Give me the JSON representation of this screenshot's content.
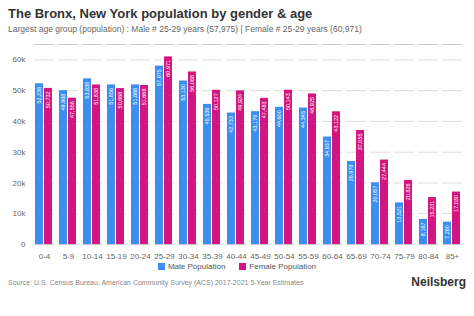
{
  "chart_data": {
    "type": "bar",
    "title": "The Bronx, New York population by gender & age",
    "subtitle": "Largest age group (population) : Male # 25-29 years (57,975) | Female # 25-29 years (60,971)",
    "source": "Source: U.S. Census Bureau, American Community Survey (ACS) 2017-2021 5-Year Estimates",
    "credit": "Neilsberg",
    "categories": [
      "0-4",
      "5-9",
      "10-14",
      "15-19",
      "20-24",
      "25-29",
      "30-34",
      "35-39",
      "40-44",
      "45-49",
      "50-54",
      "55-59",
      "60-64",
      "65-69",
      "70-74",
      "75-79",
      "80-84",
      "85+"
    ],
    "series": [
      {
        "name": "Male Population",
        "color": "#3d8ef0",
        "values": [
          52236,
          49988,
          53838,
          51856,
          51888,
          57975,
          53130,
          45536,
          42733,
          43179,
          44600,
          44345,
          34937,
          26978,
          20057,
          13521,
          8167,
          7260
        ],
        "value_labels": [
          "52,236",
          "49,988",
          "53,838",
          "51,856",
          "51,888",
          "57,975",
          "53,130",
          "45,536",
          "42,733",
          "43,179",
          "44,600",
          "44,345",
          "34,937",
          "26,978",
          "20,057",
          "13,521",
          "8,167",
          "7,260"
        ]
      },
      {
        "name": "Female Population",
        "color": "#d4147f",
        "values": [
          50732,
          47556,
          51838,
          50668,
          51668,
          60971,
          56068,
          50127,
          49924,
          47483,
          50143,
          48925,
          43122,
          37055,
          27444,
          20826,
          15231,
          17030
        ],
        "value_labels": [
          "50,732",
          "47,556",
          "51,838",
          "50,668",
          "51,668",
          "60,971",
          "56,068",
          "50,127",
          "49,924",
          "47,483",
          "50,143",
          "48,925",
          "43,122",
          "37,055",
          "27,444",
          "20,826",
          "15,231",
          "17,030"
        ]
      }
    ],
    "ylim": [
      0,
      65000
    ],
    "yticks": [
      0,
      {
        "value": 10000,
        "label": "10k"
      },
      {
        "value": 20000,
        "label": "20k"
      },
      {
        "value": 30000,
        "label": "30k"
      },
      {
        "value": 40000,
        "label": "40k"
      },
      {
        "value": 50000,
        "label": "50k"
      },
      {
        "value": 60000,
        "label": "60k"
      }
    ],
    "grid": true,
    "data_labels": true,
    "legend": "bottom"
  }
}
